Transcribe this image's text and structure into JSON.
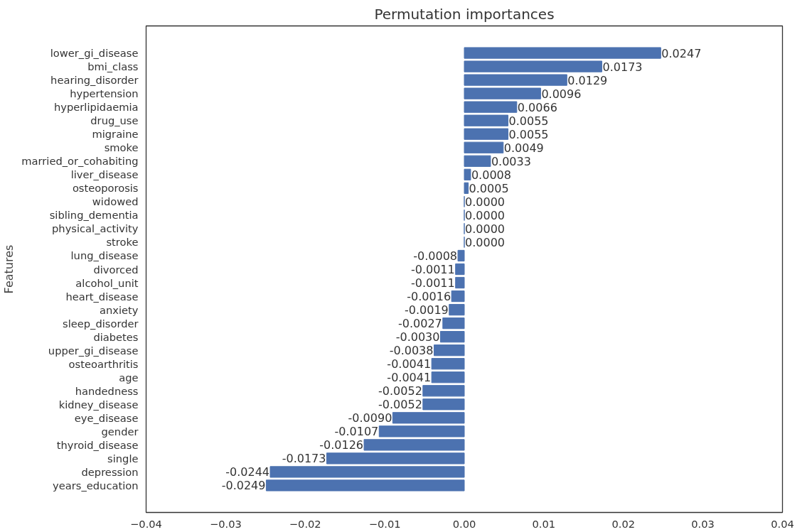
{
  "chart_data": {
    "type": "bar",
    "orientation": "horizontal",
    "title": "Permutation importances",
    "ylabel": "Features",
    "categories": [
      "lower_gi_disease",
      "bmi_class",
      "hearing_disorder",
      "hypertension",
      "hyperlipidaemia",
      "drug_use",
      "migraine",
      "smoke",
      "married_or_cohabiting",
      "liver_disease",
      "osteoporosis",
      "widowed",
      "sibling_dementia",
      "physical_activity",
      "stroke",
      "lung_disease",
      "divorced",
      "alcohol_unit",
      "heart_disease",
      "anxiety",
      "sleep_disorder",
      "diabetes",
      "upper_gi_disease",
      "osteoarthritis",
      "age",
      "handedness",
      "kidney_disease",
      "eye_disease",
      "gender",
      "thyroid_disease",
      "single",
      "depression",
      "years_education"
    ],
    "values": [
      0.0247,
      0.0173,
      0.0129,
      0.0096,
      0.0066,
      0.0055,
      0.0055,
      0.0049,
      0.0033,
      0.0008,
      0.0005,
      0.0,
      0.0,
      0.0,
      0.0,
      -0.0008,
      -0.0011,
      -0.0011,
      -0.0016,
      -0.0019,
      -0.0027,
      -0.003,
      -0.0038,
      -0.0041,
      -0.0041,
      -0.0052,
      -0.0052,
      -0.009,
      -0.0107,
      -0.0126,
      -0.0173,
      -0.0244,
      -0.0249
    ],
    "color": "#4c72b0",
    "value_labels": [
      "0.0247",
      "0.0173",
      "0.0129",
      "0.0096",
      "0.0066",
      "0.0055",
      "0.0055",
      "0.0049",
      "0.0033",
      "0.0008",
      "0.0005",
      "0.0000",
      "0.0000",
      "0.0000",
      "0.0000",
      "-0.0008",
      "-0.0011",
      "-0.0011",
      "-0.0016",
      "-0.0019",
      "-0.0027",
      "-0.0030",
      "-0.0038",
      "-0.0041",
      "-0.0041",
      "-0.0052",
      "-0.0052",
      "-0.0090",
      "-0.0107",
      "-0.0126",
      "-0.0173",
      "-0.0244",
      "-0.0249"
    ],
    "grid": false,
    "xlim": [
      -0.04,
      0.04
    ],
    "xticks": [
      {
        "value": -0.04,
        "label": "−0.04"
      },
      {
        "value": -0.03,
        "label": "−0.03"
      },
      {
        "value": -0.02,
        "label": "−0.02"
      },
      {
        "value": -0.01,
        "label": "−0.01"
      },
      {
        "value": 0,
        "label": "0.00"
      },
      {
        "value": 0.01,
        "label": "0.01"
      },
      {
        "value": 0.02,
        "label": "0.02"
      },
      {
        "value": 0.03,
        "label": "0.03"
      },
      {
        "value": 0.04,
        "label": "0.04"
      }
    ]
  }
}
